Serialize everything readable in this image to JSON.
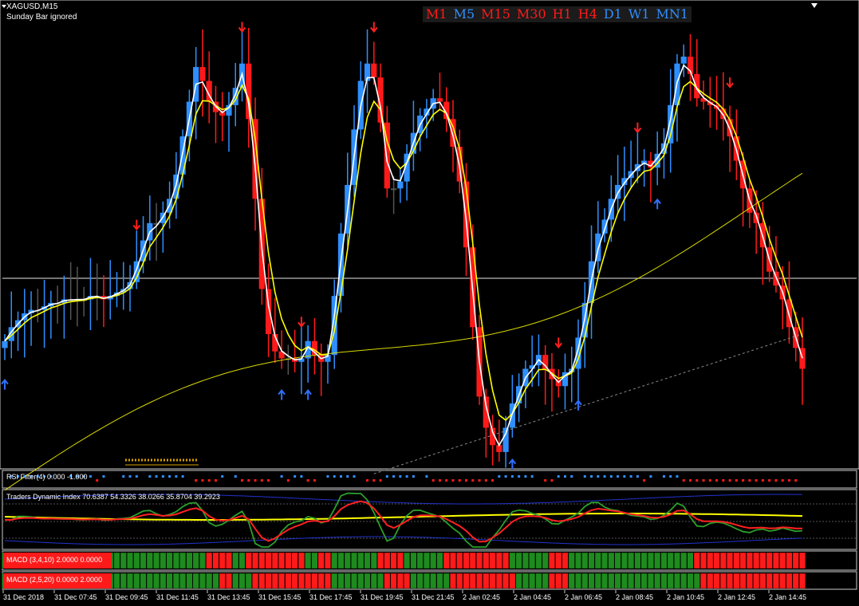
{
  "header": {
    "symbol": "XAGUSD,M15",
    "note": "Sunday Bar ignored"
  },
  "timeframes": [
    {
      "label": "M1",
      "color": "#ff1a1a"
    },
    {
      "label": "M5",
      "color": "#2f8fff"
    },
    {
      "label": "M15",
      "color": "#ff1a1a"
    },
    {
      "label": "M30",
      "color": "#ff1a1a"
    },
    {
      "label": "H1",
      "color": "#ff1a1a"
    },
    {
      "label": "H4",
      "color": "#ff1a1a"
    },
    {
      "label": "D1",
      "color": "#2f8fff"
    },
    {
      "label": "W1",
      "color": "#2f8fff"
    },
    {
      "label": "MN1",
      "color": "#2f8fff"
    }
  ],
  "panels": {
    "rsi_filter": "RSI Filter(4) 0.000 -1.000",
    "tdi": "Traders Dynamic Index 70.6387 54.3326 38.0266 35.8704 39.2923",
    "macd1": "MACD (3,4,10) 2.0000 0.0000",
    "macd2": "MACD (2,5,20) 0.0000 2.0000"
  },
  "time_axis": [
    "31 Dec 2018",
    "31 Dec 07:45",
    "31 Dec 09:45",
    "31 Dec 11:45",
    "31 Dec 13:45",
    "31 Dec 15:45",
    "31 Dec 17:45",
    "31 Dec 19:45",
    "31 Dec 21:45",
    "2 Jan 02:45",
    "2 Jan 04:45",
    "2 Jan 06:45",
    "2 Jan 08:45",
    "2 Jan 10:45",
    "2 Jan 12:45",
    "2 Jan 14:45"
  ],
  "colors": {
    "bull": "#2f8fff",
    "bear": "#ff1a1a",
    "neutral": "#555555",
    "ma_fast": "#ffffff",
    "ma_mid": "#ffff00",
    "ma_slow": "#d8d800",
    "ma_dot": "#888888",
    "tdi_green": "#2ca02c",
    "tdi_red": "#ff2020",
    "tdi_yellow": "#ffff00",
    "tdi_band": "#2233cc"
  },
  "chart_data": {
    "type": "line",
    "title": "XAGUSD,M15",
    "price_path": [
      0.18,
      0.22,
      0.24,
      0.26,
      0.27,
      0.27,
      0.28,
      0.29,
      0.29,
      0.3,
      0.3,
      0.3,
      0.3,
      0.31,
      0.31,
      0.3,
      0.31,
      0.32,
      0.33,
      0.35,
      0.41,
      0.47,
      0.52,
      0.52,
      0.55,
      0.59,
      0.66,
      0.77,
      0.87,
      0.97,
      0.93,
      0.87,
      0.84,
      0.83,
      0.86,
      0.91,
      0.98,
      0.82,
      0.59,
      0.33,
      0.2,
      0.15,
      0.13,
      0.13,
      0.12,
      0.13,
      0.18,
      0.14,
      0.12,
      0.14,
      0.31,
      0.49,
      0.63,
      0.79,
      0.93,
      0.98,
      0.94,
      0.81,
      0.62,
      0.62,
      0.64,
      0.72,
      0.78,
      0.83,
      0.85,
      0.88,
      0.87,
      0.82,
      0.74,
      0.64,
      0.45,
      0.22,
      0.02,
      -0.07,
      -0.12,
      -0.14,
      -0.07,
      0.0,
      0.05,
      0.1,
      0.11,
      0.14,
      0.1,
      0.07,
      0.05,
      0.09,
      0.1,
      0.19,
      0.29,
      0.41,
      0.49,
      0.53,
      0.59,
      0.63,
      0.65,
      0.67,
      0.69,
      0.7,
      0.68,
      0.72,
      0.75,
      0.86,
      0.98,
      1.0,
      0.95,
      0.88,
      0.87,
      0.86,
      0.85,
      0.82,
      0.77,
      0.7,
      0.62,
      0.55,
      0.52,
      0.45,
      0.38,
      0.34,
      0.3,
      0.22,
      0.16,
      0.1
    ]
  }
}
